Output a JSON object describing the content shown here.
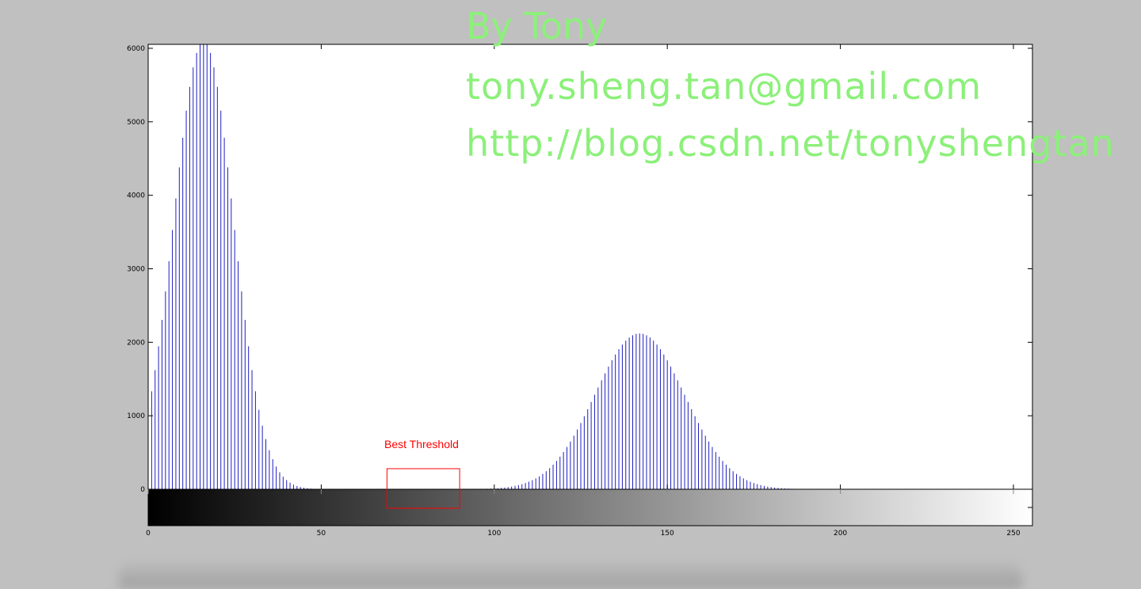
{
  "chart_data": {
    "type": "bar",
    "title": "",
    "xlabel": "",
    "ylabel": "",
    "xlim": [
      0,
      255
    ],
    "ylim": [
      0,
      6000
    ],
    "xticks": [
      0,
      50,
      100,
      150,
      200,
      250
    ],
    "yticks": [
      0,
      1000,
      2000,
      3000,
      4000,
      5000,
      6000
    ],
    "grid": false,
    "colorbar": "grayscale 0-255 below x axis",
    "series": [
      {
        "peaks": [
          {
            "mean": 16,
            "sigma": 8.6,
            "amplitude": 6100
          },
          {
            "mean": 142,
            "sigma": 13,
            "amplitude": 2120
          }
        ],
        "x_range": [
          0,
          255
        ],
        "bar_color": "#1f1fc0"
      }
    ],
    "annotations": [
      {
        "text": "Best Threshold",
        "color": "#ff0000",
        "box_x": [
          69,
          90
        ],
        "box_y": [
          -260,
          270
        ]
      }
    ]
  },
  "watermark": {
    "line1": "By Tony",
    "line2": "tony.sheng.tan@gmail.com",
    "line3": "http://blog.csdn.net/tonyshengtan",
    "color": "#8cf07a"
  }
}
